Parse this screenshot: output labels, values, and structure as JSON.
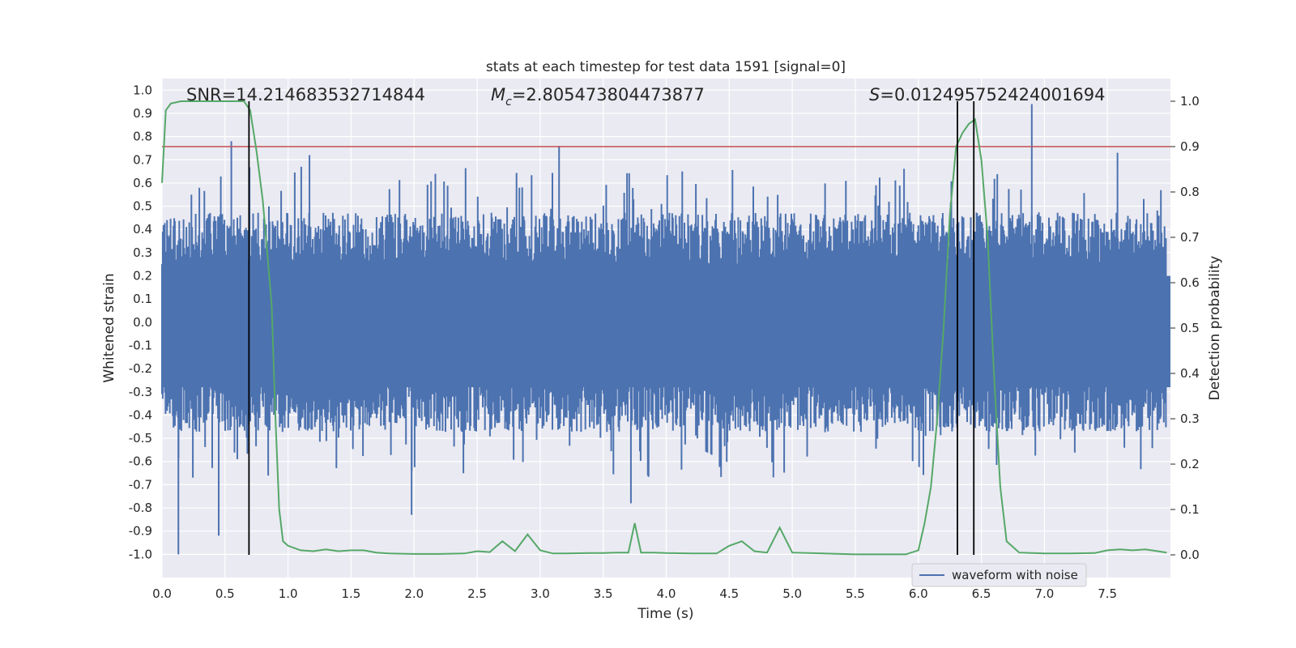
{
  "chart_data": {
    "type": "line",
    "title": "stats at each timestep for test data 1591 [signal=0]",
    "xlabel": "Time (s)",
    "ylabel_left": "Whitened strain",
    "ylabel_right": "Detection probability",
    "xlim": [
      0.0,
      8.0
    ],
    "ylim_left": [
      -1.1,
      1.05
    ],
    "ylim_right": [
      -0.05,
      1.05
    ],
    "x_ticks": [
      "0.0",
      "0.5",
      "1.0",
      "1.5",
      "2.0",
      "2.5",
      "3.0",
      "3.5",
      "4.0",
      "4.5",
      "5.0",
      "5.5",
      "6.0",
      "6.5",
      "7.0",
      "7.5"
    ],
    "y_ticks_left": [
      "1.0",
      "0.9",
      "0.8",
      "0.7",
      "0.6",
      "0.5",
      "0.4",
      "0.3",
      "0.2",
      "0.1",
      "0.0",
      "-0.1",
      "-0.2",
      "-0.3",
      "-0.4",
      "-0.5",
      "-0.6",
      "-0.7",
      "-0.8",
      "-0.9",
      "-1.0"
    ],
    "y_ticks_right": [
      "1.0",
      "0.9",
      "0.8",
      "0.7",
      "0.6",
      "0.5",
      "0.4",
      "0.3",
      "0.2",
      "0.1",
      "0.0"
    ],
    "annotations": {
      "snr": "SNR=14.214683532714844",
      "mc_symbol": "M",
      "mc_sub": "c",
      "mc_value": "=2.805473804473877",
      "s_symbol": "S",
      "s_value": "=0.012495752424001694"
    },
    "threshold": 0.9,
    "vertical_markers": [
      0.69,
      6.31,
      6.44
    ],
    "legend": {
      "label": "waveform with noise",
      "placement": "lower-right"
    },
    "grid": true,
    "colors": {
      "background": "#eaeaf2",
      "grid": "#ffffff",
      "waveform": "#4c72b0",
      "probability": "#55a868",
      "threshold": "#c44e52",
      "marker": "#000000"
    },
    "series": [
      {
        "name": "waveform with noise",
        "axis": "left",
        "style": "dense-noise",
        "envelope_typical": [
          -0.45,
          0.45
        ],
        "peaks": [
          {
            "x": 0.13,
            "y": -1.0
          },
          {
            "x": 0.45,
            "y": -0.92
          },
          {
            "x": 0.55,
            "y": 0.78
          },
          {
            "x": 1.17,
            "y": 0.72
          },
          {
            "x": 1.98,
            "y": -0.83
          },
          {
            "x": 3.15,
            "y": 0.76
          },
          {
            "x": 3.72,
            "y": -0.78
          },
          {
            "x": 6.9,
            "y": 0.94
          },
          {
            "x": 7.58,
            "y": 0.73
          }
        ]
      },
      {
        "name": "",
        "axis": "right",
        "x": [
          0.0,
          0.03,
          0.07,
          0.15,
          0.25,
          0.4,
          0.55,
          0.65,
          0.7,
          0.75,
          0.8,
          0.87,
          0.9,
          0.93,
          0.96,
          1.0,
          1.1,
          1.2,
          1.3,
          1.4,
          1.5,
          1.6,
          1.7,
          1.8,
          2.0,
          2.2,
          2.4,
          2.5,
          2.6,
          2.7,
          2.8,
          2.9,
          3.0,
          3.1,
          3.2,
          3.4,
          3.5,
          3.6,
          3.7,
          3.75,
          3.8,
          3.9,
          4.0,
          4.2,
          4.4,
          4.5,
          4.6,
          4.7,
          4.8,
          4.9,
          5.0,
          5.5,
          5.9,
          6.0,
          6.05,
          6.1,
          6.15,
          6.2,
          6.25,
          6.3,
          6.35,
          6.4,
          6.45,
          6.5,
          6.55,
          6.6,
          6.65,
          6.7,
          6.8,
          7.0,
          7.2,
          7.4,
          7.5,
          7.6,
          7.7,
          7.8,
          7.9,
          7.97
        ],
        "values": [
          0.82,
          0.98,
          0.995,
          1.0,
          1.0,
          1.0,
          1.0,
          1.0,
          0.98,
          0.89,
          0.78,
          0.55,
          0.3,
          0.1,
          0.03,
          0.02,
          0.01,
          0.008,
          0.012,
          0.008,
          0.01,
          0.01,
          0.005,
          0.003,
          0.002,
          0.002,
          0.003,
          0.008,
          0.006,
          0.03,
          0.008,
          0.045,
          0.01,
          0.003,
          0.003,
          0.004,
          0.004,
          0.005,
          0.005,
          0.07,
          0.005,
          0.005,
          0.004,
          0.003,
          0.003,
          0.02,
          0.03,
          0.008,
          0.005,
          0.06,
          0.005,
          0.001,
          0.001,
          0.01,
          0.07,
          0.15,
          0.3,
          0.5,
          0.75,
          0.9,
          0.93,
          0.95,
          0.96,
          0.87,
          0.7,
          0.4,
          0.15,
          0.03,
          0.005,
          0.003,
          0.003,
          0.004,
          0.01,
          0.012,
          0.01,
          0.012,
          0.008,
          0.005
        ]
      }
    ]
  }
}
